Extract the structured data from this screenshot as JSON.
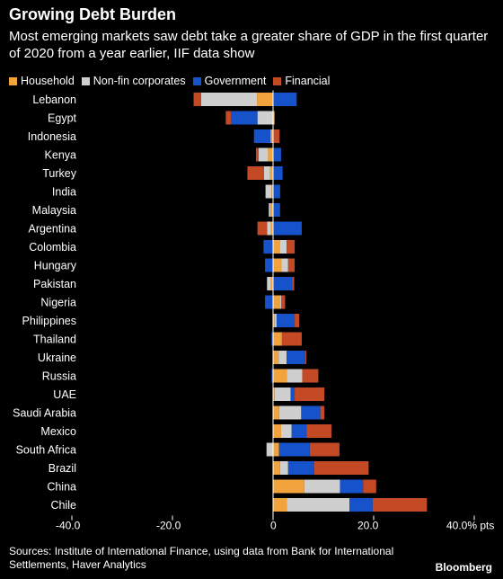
{
  "chart_data": {
    "type": "bar",
    "orientation": "horizontal",
    "stacked": true,
    "title": "Growing Debt Burden",
    "subtitle": "Most emerging markets saw debt take a greater share of GDP in the first quarter of 2020 from a year earlier, IIF data show",
    "xlim": [
      -40,
      40
    ],
    "x_ticks": [
      -40,
      -20,
      0,
      20,
      40
    ],
    "x_tick_labels": [
      "-40.0",
      "-20.0",
      "0",
      "20.0",
      "40.0% pts"
    ],
    "legend_placement": "top-left",
    "categories": [
      "Lebanon",
      "Egypt",
      "Indonesia",
      "Kenya",
      "Turkey",
      "India",
      "Malaysia",
      "Argentina",
      "Colombia",
      "Hungary",
      "Pakistan",
      "Nigeria",
      "Philippines",
      "Thailand",
      "Ukraine",
      "Russia",
      "UAE",
      "Saudi Arabia",
      "Mexico",
      "South Africa",
      "Brazil",
      "China",
      "Chile"
    ],
    "series": [
      {
        "name": "Household",
        "color": "#f3a33b",
        "values": [
          -3.2,
          0.3,
          -0.3,
          -1.0,
          -0.6,
          -0.3,
          -0.5,
          -0.4,
          1.3,
          1.7,
          -0.4,
          1.3,
          0.3,
          1.6,
          1.1,
          2.7,
          0.3,
          1.2,
          1.6,
          1.2,
          1.4,
          6.2,
          2.7
        ]
      },
      {
        "name": "Non-fin corporates",
        "color": "#cfcfcf",
        "values": [
          -11.1,
          -3.1,
          -0.2,
          -1.9,
          -1.2,
          -1.2,
          -0.3,
          -0.8,
          1.4,
          1.3,
          -0.8,
          0.3,
          0.4,
          0.1,
          1.6,
          3.1,
          3.2,
          4.4,
          2.1,
          -1.3,
          1.6,
          7.1,
          12.5
        ]
      },
      {
        "name": "Government",
        "color": "#1652c9",
        "values": [
          4.7,
          -5.3,
          -3.3,
          1.6,
          1.9,
          1.3,
          1.4,
          5.7,
          -1.9,
          -1.6,
          3.8,
          -1.6,
          3.6,
          -0.3,
          3.7,
          -0.3,
          0.8,
          3.8,
          3.0,
          6.1,
          5.2,
          4.6,
          4.6
        ]
      },
      {
        "name": "Financial",
        "color": "#c34a25",
        "values": [
          -1.5,
          -1.0,
          1.3,
          -0.5,
          -3.3,
          0.1,
          -0.1,
          -1.9,
          1.6,
          1.3,
          0.4,
          0.8,
          0.9,
          4.0,
          0.2,
          3.2,
          5.9,
          0.8,
          4.9,
          5.9,
          10.8,
          2.6,
          10.8
        ]
      }
    ]
  },
  "legend_title": "",
  "footer": {
    "source": "Sources: Institute of International Finance, using data from Bank for International Settlements, Haver Analytics",
    "brand": "Bloomberg"
  }
}
